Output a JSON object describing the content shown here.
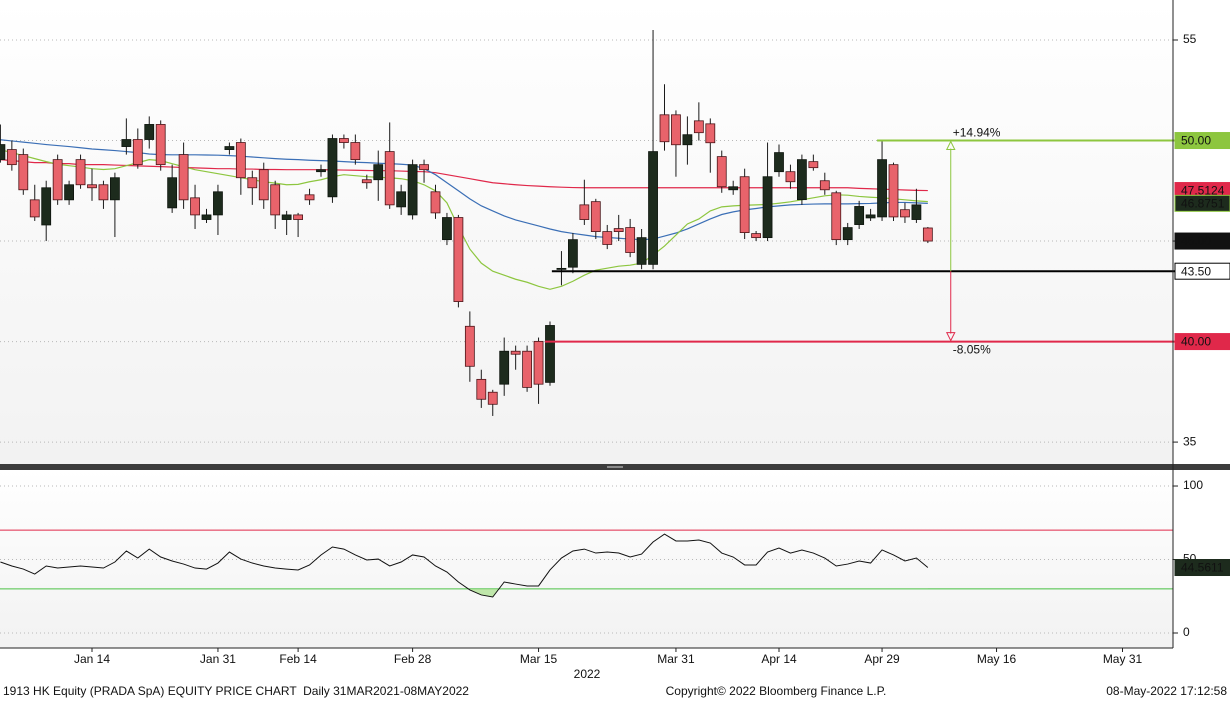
{
  "chart_data": {
    "type": "candlestick",
    "categories": [
      null,
      null,
      null,
      null,
      null,
      null,
      null,
      null,
      "Jan 14",
      null,
      null,
      null,
      null,
      null,
      null,
      null,
      null,
      null,
      null,
      "Jan 31",
      null,
      null,
      null,
      null,
      null,
      null,
      "Feb 14",
      null,
      null,
      null,
      null,
      null,
      null,
      null,
      null,
      null,
      "Feb 28",
      null,
      null,
      null,
      null,
      null,
      null,
      null,
      null,
      null,
      null,
      "Mar 15",
      null,
      null,
      null,
      null,
      null,
      null,
      null,
      null,
      null,
      null,
      null,
      "Mar 31",
      null,
      null,
      null,
      null,
      null,
      null,
      null,
      null,
      "Apr 14",
      null,
      null,
      null,
      null,
      null,
      null,
      null,
      null,
      "Apr 29",
      null,
      null,
      null,
      null,
      null,
      null,
      null,
      null,
      null,
      "May 16",
      null,
      null,
      null,
      null,
      null,
      null,
      null,
      null,
      null,
      null,
      "May 31",
      null,
      null,
      null,
      null
    ],
    "year_label": "2022",
    "open": [
      49.05,
      49.55,
      49.3,
      47.05,
      45.8,
      49.05,
      47.05,
      49.05,
      47.8,
      47.8,
      47.05,
      49.7,
      50.05,
      50.05,
      50.8,
      46.65,
      49.3,
      47.15,
      46.07,
      46.3,
      49.55,
      49.9,
      48.15,
      48.55,
      47.8,
      46.07,
      46.3,
      47.3,
      48.45,
      47.2,
      50.1,
      49.9,
      48.05,
      48.05,
      49.45,
      46.7,
      46.3,
      48.8,
      47.45,
      45.07,
      46.17,
      40.76,
      38.12,
      37.48,
      37.88,
      39.52,
      39.52,
      40.01,
      37.97,
      43.6,
      43.7,
      46.8,
      46.96,
      45.47,
      45.62,
      45.67,
      43.84,
      43.84,
      51.28,
      51.28,
      49.79,
      50.98,
      50.83,
      49.2,
      47.55,
      48.2,
      45.37,
      45.17,
      48.45,
      48.45,
      47.06,
      48.95,
      48.0,
      47.4,
      45.07,
      45.82,
      46.15,
      46.2,
      48.8,
      46.56,
      46.07,
      45.65,
      null,
      null,
      null,
      null,
      null,
      null,
      null,
      null,
      null,
      null,
      null,
      null,
      null,
      null,
      null,
      null,
      null,
      null,
      null,
      null,
      null
    ],
    "high": [
      50.8,
      50.0,
      49.6,
      47.8,
      48.0,
      49.3,
      48.0,
      49.3,
      48.6,
      48.0,
      48.4,
      51.1,
      50.6,
      51.2,
      51.0,
      48.8,
      49.9,
      47.8,
      46.6,
      47.8,
      49.9,
      50.1,
      48.5,
      48.9,
      48.0,
      46.5,
      46.4,
      47.6,
      48.8,
      50.3,
      50.3,
      50.3,
      48.3,
      49.5,
      50.9,
      47.8,
      49.05,
      49.05,
      47.8,
      46.4,
      46.3,
      41.5,
      38.6,
      37.6,
      40.2,
      39.8,
      39.8,
      40.2,
      41.0,
      44.5,
      45.4,
      48.05,
      47.1,
      45.8,
      46.3,
      46.1,
      45.6,
      55.5,
      52.8,
      51.5,
      51.2,
      51.9,
      51.1,
      49.5,
      48.0,
      48.6,
      45.5,
      49.9,
      49.8,
      48.8,
      49.3,
      49.3,
      48.4,
      47.5,
      45.9,
      47.0,
      46.6,
      50.0,
      48.9,
      46.9,
      47.6,
      45.7,
      null,
      null,
      null,
      null,
      null,
      null,
      null,
      null,
      null,
      null,
      null,
      null,
      null,
      null,
      null,
      null,
      null,
      null,
      null,
      null,
      null
    ],
    "low": [
      48.9,
      48.5,
      47.3,
      46.0,
      45.0,
      46.8,
      46.8,
      47.6,
      47.0,
      46.6,
      45.2,
      49.3,
      48.6,
      49.6,
      48.5,
      46.4,
      46.6,
      45.6,
      45.9,
      45.3,
      49.3,
      47.3,
      46.8,
      46.6,
      45.6,
      45.3,
      45.2,
      46.8,
      48.2,
      46.9,
      49.6,
      48.8,
      47.6,
      47.0,
      46.6,
      46.3,
      46.07,
      47.9,
      46.1,
      44.8,
      41.7,
      38.0,
      36.7,
      36.3,
      37.3,
      38.6,
      37.5,
      36.9,
      37.8,
      42.8,
      43.4,
      45.8,
      45.1,
      44.6,
      45.0,
      44.2,
      43.6,
      43.6,
      49.5,
      48.2,
      48.8,
      50.0,
      48.4,
      47.4,
      47.3,
      45.1,
      45.0,
      45.0,
      48.2,
      47.6,
      46.8,
      48.5,
      47.3,
      44.8,
      44.8,
      45.6,
      46.0,
      46.0,
      46.0,
      45.9,
      45.9,
      44.9,
      null,
      null,
      null,
      null,
      null,
      null,
      null,
      null,
      null,
      null,
      null,
      null,
      null,
      null,
      null,
      null,
      null,
      null,
      null,
      null,
      null
    ],
    "close": [
      49.8,
      48.8,
      47.55,
      46.2,
      47.65,
      47.05,
      47.8,
      47.8,
      47.65,
      47.05,
      48.15,
      50.05,
      48.8,
      50.8,
      48.8,
      48.15,
      47.05,
      46.3,
      46.3,
      47.45,
      49.7,
      48.15,
      47.65,
      47.05,
      46.3,
      46.3,
      46.07,
      47.05,
      48.55,
      50.1,
      49.9,
      49.05,
      47.9,
      48.8,
      46.8,
      47.45,
      48.8,
      48.55,
      46.4,
      46.17,
      41.99,
      38.77,
      37.13,
      36.88,
      39.52,
      39.37,
      37.72,
      37.88,
      40.8,
      43.64,
      45.07,
      46.07,
      45.47,
      44.83,
      45.47,
      44.43,
      45.17,
      49.45,
      49.94,
      49.79,
      50.29,
      50.39,
      49.89,
      47.7,
      47.7,
      45.42,
      45.17,
      48.2,
      49.4,
      47.95,
      49.05,
      48.65,
      47.55,
      45.07,
      45.67,
      46.72,
      46.3,
      49.05,
      46.2,
      46.2,
      46.8,
      45.0,
      null,
      null,
      null,
      null,
      null,
      null,
      null,
      null,
      null,
      null,
      null,
      null,
      null,
      null,
      null,
      null,
      null,
      null,
      null,
      null,
      null
    ],
    "up_color": "#1d2b1d",
    "down_color": "#e8636b",
    "last_label": "45.00",
    "ylim": [
      33.91,
      56.99
    ],
    "yticks": [
      35,
      40,
      45,
      50,
      55
    ],
    "grid": true,
    "series": [
      {
        "color": "#e0284a",
        "last_label": "47.5124",
        "values": [
          49.05,
          49.0,
          48.95,
          48.9,
          48.9,
          48.85,
          48.85,
          48.8,
          48.8,
          48.8,
          48.78,
          48.76,
          48.74,
          48.72,
          48.7,
          48.68,
          48.66,
          48.64,
          48.62,
          48.6,
          48.6,
          48.58,
          48.58,
          48.56,
          48.56,
          48.55,
          48.55,
          48.55,
          48.55,
          48.54,
          48.53,
          48.52,
          48.51,
          48.5,
          48.5,
          48.48,
          48.46,
          48.45,
          48.4,
          48.3,
          48.2,
          48.1,
          48.0,
          47.9,
          47.85,
          47.8,
          47.76,
          47.73,
          47.7,
          47.68,
          47.66,
          47.65,
          47.65,
          47.65,
          47.65,
          47.65,
          47.65,
          47.65,
          47.65,
          47.65,
          47.65,
          47.65,
          47.65,
          47.65,
          47.65,
          47.65,
          47.65,
          47.65,
          47.65,
          47.65,
          47.65,
          47.65,
          47.65,
          47.65,
          47.65,
          47.62,
          47.6,
          47.58,
          47.56,
          47.54,
          47.52,
          47.5124,
          null,
          null,
          null,
          null,
          null,
          null,
          null,
          null,
          null,
          null,
          null,
          null,
          null,
          null,
          null,
          null,
          null,
          null,
          null,
          null,
          null
        ]
      },
      {
        "color": "#3b6fb6",
        "last_label": "46.8751",
        "values": [
          50.04,
          49.98,
          49.92,
          49.86,
          49.8,
          49.75,
          49.7,
          49.64,
          49.58,
          49.54,
          49.5,
          49.45,
          49.4,
          49.33,
          49.3,
          49.29,
          49.29,
          49.29,
          49.28,
          49.27,
          49.25,
          49.22,
          49.18,
          49.14,
          49.1,
          49.07,
          49.05,
          49.02,
          49.0,
          48.98,
          48.95,
          48.92,
          48.9,
          48.87,
          48.85,
          48.82,
          48.78,
          48.6,
          48.3,
          47.9,
          47.5,
          47.1,
          46.75,
          46.5,
          46.25,
          46.05,
          45.9,
          45.75,
          45.6,
          45.47,
          45.38,
          45.3,
          45.22,
          45.18,
          45.14,
          45.1,
          45.07,
          45.1,
          45.25,
          45.4,
          45.6,
          45.85,
          46.1,
          46.32,
          46.45,
          46.55,
          46.62,
          46.7,
          46.75,
          46.8,
          46.82,
          46.84,
          46.85,
          46.85,
          46.85,
          46.86,
          46.87,
          46.9,
          46.92,
          46.92,
          46.9,
          46.8751,
          null,
          null,
          null,
          null,
          null,
          null,
          null,
          null,
          null,
          null,
          null,
          null,
          null,
          null,
          null,
          null,
          null,
          null,
          null,
          null,
          null
        ]
      },
      {
        "color": "#8dc63f",
        "values": [
          49.54,
          49.4,
          49.25,
          49.1,
          48.95,
          48.82,
          48.75,
          48.68,
          48.6,
          48.56,
          48.6,
          48.75,
          48.9,
          49.05,
          49.0,
          48.85,
          48.7,
          48.55,
          48.45,
          48.35,
          48.25,
          48.15,
          48.05,
          47.95,
          47.88,
          47.8,
          47.82,
          47.95,
          48.05,
          48.2,
          48.3,
          48.25,
          48.2,
          48.17,
          48.15,
          48.1,
          48.0,
          47.8,
          47.5,
          46.9,
          45.7,
          44.6,
          43.9,
          43.5,
          43.3,
          43.1,
          42.95,
          42.75,
          42.6,
          42.75,
          43.0,
          43.3,
          43.55,
          43.65,
          43.75,
          43.8,
          43.9,
          44.3,
          44.75,
          45.3,
          45.85,
          46.1,
          46.5,
          46.7,
          46.75,
          46.78,
          46.8,
          46.82,
          46.88,
          46.95,
          47.05,
          47.15,
          47.25,
          47.3,
          47.28,
          47.22,
          47.18,
          47.15,
          47.1,
          47.05,
          47.0,
          46.96,
          null,
          null,
          null,
          null,
          null,
          null,
          null,
          null,
          null,
          null,
          null,
          null,
          null,
          null,
          null,
          null,
          null,
          null,
          null,
          null,
          null
        ]
      }
    ],
    "levels": [
      {
        "value": 50,
        "label": "50.00",
        "color": "#8dc63f"
      },
      {
        "value": 43.5,
        "label": "43.50",
        "color": "#000000"
      },
      {
        "value": 40,
        "label": "40.00",
        "color": "#e0284a"
      }
    ],
    "changes": [
      {
        "value": 14.94,
        "label": "+14.94%",
        "color": "#8dc63f"
      },
      {
        "value": -8.05,
        "label": "-8.05%",
        "color": "#e0284a"
      }
    ],
    "rsi": {
      "type": "line",
      "color": "#111111",
      "values": [
        48.3,
        45.6,
        43.5,
        40.1,
        45.6,
        44.2,
        44.9,
        45.6,
        44.9,
        44.2,
        48.3,
        55.8,
        51.0,
        57.1,
        51.7,
        49.0,
        46.9,
        44.2,
        43.5,
        47.6,
        55.1,
        50.3,
        47.6,
        45.6,
        44.2,
        43.5,
        42.9,
        46.3,
        53.1,
        58.5,
        57.1,
        53.1,
        49.7,
        50.3,
        45.6,
        48.3,
        53.1,
        51.7,
        45.6,
        41.5,
        34.7,
        29.3,
        25.9,
        24.5,
        34.7,
        33.3,
        32.0,
        32.0,
        42.9,
        51.0,
        55.8,
        57.1,
        54.4,
        55.1,
        54.4,
        51.7,
        53.7,
        61.9,
        67.3,
        62.6,
        62.6,
        63.3,
        61.2,
        54.4,
        51.7,
        46.3,
        46.3,
        55.1,
        57.8,
        54.4,
        56.5,
        54.4,
        51.0,
        45.6,
        46.9,
        49.0,
        47.6,
        56.5,
        53.1,
        49.0,
        51.0,
        44.5611,
        null,
        null,
        null,
        null,
        null,
        null,
        null,
        null,
        null,
        null,
        null,
        null,
        null,
        null,
        null,
        null,
        null,
        null,
        null,
        null,
        null
      ],
      "last_label": "44.5611",
      "ylim": [
        -10.2,
        110.9
      ],
      "yticks": [
        0,
        50,
        100
      ],
      "upper": 70,
      "upper_color": "#e0284a",
      "lower": 30,
      "lower_color": "#44c040"
    }
  },
  "footer": {
    "left": "1913 HK Equity (PRADA SpA) EQUITY PRICE CHART  Daily 31MAR2021-08MAY2022",
    "center": "Copyright© 2022 Bloomberg Finance L.P.",
    "right": "08-May-2022 17:12:58"
  }
}
